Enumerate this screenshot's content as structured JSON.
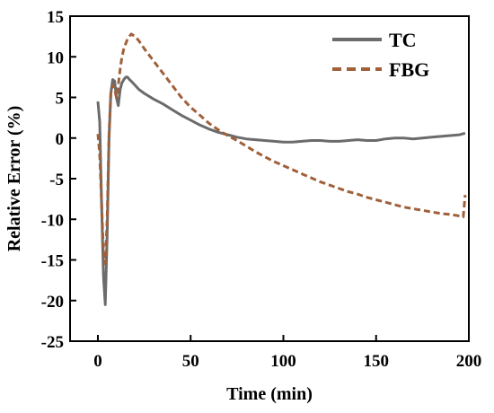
{
  "chart_data": {
    "type": "line",
    "title": "",
    "xlabel": "Time (min)",
    "ylabel": "Relative Error (%)",
    "xlim": [
      -15,
      200
    ],
    "ylim": [
      -25,
      15
    ],
    "xticks": [
      0,
      50,
      100,
      150,
      200
    ],
    "yticks": [
      15,
      10,
      5,
      0,
      -5,
      -10,
      -15,
      -20,
      -25
    ],
    "grid": false,
    "legend_position": "top-right",
    "series": [
      {
        "name": "TC",
        "color": "#6b6b6b",
        "dash": "solid",
        "x": [
          0,
          1,
          2,
          3,
          4,
          5,
          6,
          7,
          8,
          9,
          10,
          11,
          12,
          13,
          14,
          15,
          16,
          17,
          18,
          20,
          22,
          25,
          30,
          35,
          40,
          45,
          50,
          55,
          60,
          65,
          70,
          75,
          80,
          85,
          90,
          95,
          100,
          105,
          110,
          115,
          120,
          125,
          130,
          135,
          140,
          145,
          150,
          155,
          160,
          165,
          170,
          175,
          180,
          185,
          190,
          195,
          198
        ],
        "y": [
          4.5,
          2.0,
          -8.0,
          -17.0,
          -20.5,
          -12.0,
          0.0,
          5.5,
          7.2,
          7.0,
          5.0,
          4.0,
          6.0,
          6.8,
          7.2,
          7.5,
          7.5,
          7.2,
          7.0,
          6.5,
          6.0,
          5.5,
          4.8,
          4.2,
          3.5,
          2.8,
          2.2,
          1.6,
          1.1,
          0.7,
          0.4,
          0.1,
          -0.1,
          -0.2,
          -0.3,
          -0.4,
          -0.5,
          -0.5,
          -0.4,
          -0.3,
          -0.3,
          -0.4,
          -0.4,
          -0.3,
          -0.2,
          -0.3,
          -0.3,
          -0.1,
          0.0,
          0.0,
          -0.1,
          0.0,
          0.1,
          0.2,
          0.3,
          0.4,
          0.6
        ]
      },
      {
        "name": "FBG",
        "color": "#a0603a",
        "dash": "dashed",
        "x": [
          0,
          1,
          2,
          3,
          4,
          5,
          6,
          7,
          8,
          9,
          10,
          11,
          12,
          13,
          14,
          16,
          18,
          20,
          22,
          25,
          30,
          35,
          40,
          45,
          50,
          55,
          60,
          65,
          70,
          75,
          80,
          85,
          90,
          95,
          100,
          105,
          110,
          115,
          120,
          125,
          130,
          135,
          140,
          145,
          150,
          155,
          160,
          165,
          170,
          175,
          180,
          185,
          190,
          195,
          197,
          198
        ],
        "y": [
          0.5,
          -2.0,
          -8.0,
          -14.0,
          -15.5,
          -10.0,
          0.5,
          5.5,
          6.5,
          6.0,
          5.0,
          6.5,
          8.5,
          10.0,
          11.0,
          12.2,
          12.8,
          12.5,
          12.0,
          11.0,
          9.5,
          8.0,
          6.5,
          5.0,
          3.8,
          2.8,
          1.8,
          1.0,
          0.3,
          -0.3,
          -1.0,
          -1.7,
          -2.3,
          -2.9,
          -3.4,
          -3.9,
          -4.4,
          -4.9,
          -5.4,
          -5.8,
          -6.2,
          -6.6,
          -6.9,
          -7.3,
          -7.6,
          -7.9,
          -8.2,
          -8.5,
          -8.7,
          -8.9,
          -9.1,
          -9.3,
          -9.4,
          -9.6,
          -9.7,
          -7.0
        ]
      }
    ]
  }
}
